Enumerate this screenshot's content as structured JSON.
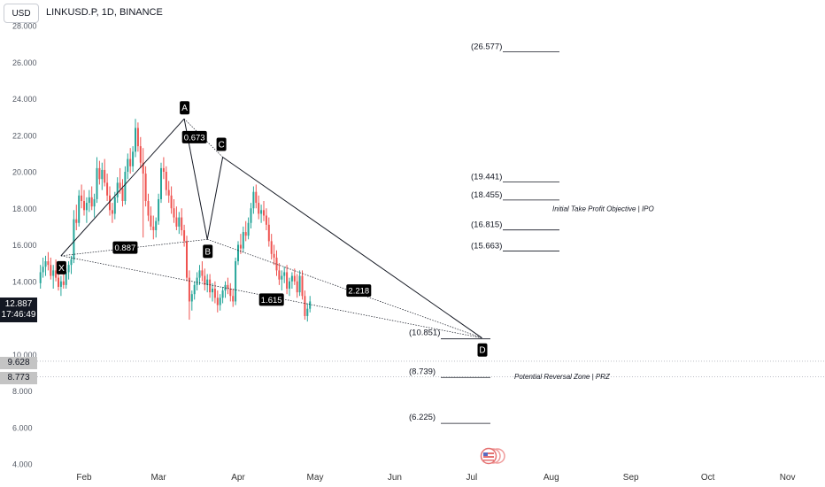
{
  "header": {
    "currency": "USD",
    "symbol": "LINKUSD.P, 1D, BINANCE"
  },
  "price_tags": {
    "current_price": "12.887",
    "countdown": "17:46:49",
    "level_1": "9.628",
    "level_2": "8.773"
  },
  "colors": {
    "up": "#26a69a",
    "down": "#ef5350",
    "pattern": "#131722",
    "label_bg": "#000000"
  },
  "chart_data": {
    "type": "candlestick",
    "symbol": "LINKUSD.P",
    "interval": "1D",
    "exchange": "BINANCE",
    "ylim": [
      4,
      28
    ],
    "y_ticks": [
      "28.000",
      "26.000",
      "24.000",
      "22.000",
      "20.000",
      "18.000",
      "16.000",
      "14.000",
      "12.000",
      "10.000",
      "8.000",
      "6.000",
      "4.000"
    ],
    "x_ticks": [
      "Feb",
      "Mar",
      "Apr",
      "May",
      "Jun",
      "Jul",
      "Aug",
      "Sep",
      "Oct",
      "Nov"
    ],
    "harmonic_points": [
      {
        "name": "X",
        "date": "2024-01-23",
        "price": 15.4
      },
      {
        "name": "A",
        "date": "2024-03-11",
        "price": 22.9
      },
      {
        "name": "B",
        "date": "2024-03-20",
        "price": 16.3
      },
      {
        "name": "C",
        "date": "2024-03-26",
        "price": 20.8
      },
      {
        "name": "D",
        "date": "2024-07-05",
        "price": 10.9
      }
    ],
    "ratios": [
      {
        "text": "0.887",
        "date": "2024-02-17",
        "price": 15.85
      },
      {
        "text": "0.673",
        "date": "2024-03-15",
        "price": 21.9
      },
      {
        "text": "1.615",
        "date": "2024-04-14",
        "price": 13.0
      },
      {
        "text": "2.218",
        "date": "2024-05-18",
        "price": 13.5
      }
    ],
    "levels": [
      {
        "label": "(26.577)",
        "price": 26.577
      },
      {
        "label": "(19.441)",
        "price": 19.441
      },
      {
        "label": "(18.455)",
        "price": 18.455
      },
      {
        "label": "(16.815)",
        "price": 16.815
      },
      {
        "label": "(15.663)",
        "price": 15.663
      },
      {
        "label": "(10.851)",
        "price": 10.851
      },
      {
        "label": "(8.739)",
        "price": 8.739
      },
      {
        "label": "(6.225)",
        "price": 6.225
      }
    ],
    "annotations": [
      {
        "text": "Initial Take Profit Objective | IPO",
        "price": 18.0
      },
      {
        "text": "Potential Reversal Zone | PRZ",
        "price": 8.8
      }
    ],
    "hlines": [
      9.628,
      8.773
    ],
    "candles": [
      [
        13.9,
        14.9,
        13.6,
        14.5
      ],
      [
        14.5,
        15.3,
        14.2,
        14.8
      ],
      [
        14.8,
        15.4,
        14.3,
        15.1
      ],
      [
        15.1,
        15.6,
        14.6,
        14.9
      ],
      [
        14.9,
        15.3,
        14.1,
        14.3
      ],
      [
        14.3,
        14.9,
        13.6,
        14.6
      ],
      [
        14.6,
        15.2,
        14.0,
        14.2
      ],
      [
        14.2,
        14.6,
        13.5,
        13.7
      ],
      [
        13.7,
        14.3,
        13.2,
        14.0
      ],
      [
        14.0,
        14.5,
        13.6,
        13.8
      ],
      [
        13.8,
        14.7,
        13.6,
        14.5
      ],
      [
        14.5,
        15.1,
        14.1,
        14.9
      ],
      [
        14.9,
        15.4,
        14.4,
        15.2
      ],
      [
        15.2,
        17.9,
        15.0,
        17.4
      ],
      [
        17.4,
        18.2,
        16.8,
        17.2
      ],
      [
        17.2,
        19.0,
        17.0,
        18.7
      ],
      [
        18.7,
        19.3,
        18.0,
        18.4
      ],
      [
        18.4,
        19.0,
        17.6,
        17.9
      ],
      [
        17.9,
        18.6,
        17.2,
        18.3
      ],
      [
        18.3,
        19.0,
        17.8,
        18.6
      ],
      [
        18.6,
        19.2,
        17.9,
        18.1
      ],
      [
        18.1,
        18.8,
        17.5,
        18.5
      ],
      [
        18.5,
        20.8,
        18.3,
        20.2
      ],
      [
        20.2,
        20.6,
        19.3,
        19.6
      ],
      [
        19.6,
        20.5,
        19.0,
        20.1
      ],
      [
        20.1,
        20.7,
        19.2,
        19.4
      ],
      [
        19.4,
        19.9,
        18.4,
        18.7
      ],
      [
        18.7,
        19.2,
        17.6,
        17.9
      ],
      [
        17.9,
        18.3,
        17.2,
        17.7
      ],
      [
        17.7,
        18.9,
        17.4,
        18.6
      ],
      [
        18.6,
        19.7,
        18.3,
        19.4
      ],
      [
        19.4,
        20.2,
        18.8,
        19.1
      ],
      [
        19.1,
        19.6,
        18.1,
        18.4
      ],
      [
        18.4,
        20.3,
        18.2,
        20.0
      ],
      [
        20.0,
        21.0,
        19.6,
        20.7
      ],
      [
        20.7,
        21.3,
        19.9,
        20.3
      ],
      [
        20.3,
        21.4,
        20.0,
        21.1
      ],
      [
        21.1,
        22.9,
        20.8,
        22.4
      ],
      [
        22.4,
        22.7,
        21.1,
        21.4
      ],
      [
        21.4,
        21.9,
        20.2,
        20.5
      ],
      [
        20.5,
        21.3,
        16.4,
        19.9
      ],
      [
        19.9,
        20.3,
        18.1,
        18.4
      ],
      [
        18.4,
        18.8,
        17.3,
        17.6
      ],
      [
        17.6,
        18.1,
        16.8,
        17.0
      ],
      [
        17.0,
        17.6,
        16.3,
        16.8
      ],
      [
        16.8,
        17.5,
        16.4,
        17.3
      ],
      [
        17.3,
        18.8,
        17.1,
        18.5
      ],
      [
        18.5,
        20.5,
        18.3,
        20.2
      ],
      [
        20.2,
        20.8,
        19.6,
        20.0
      ],
      [
        20.0,
        20.3,
        18.7,
        19.0
      ],
      [
        19.0,
        19.5,
        18.3,
        18.7
      ],
      [
        18.7,
        19.2,
        17.7,
        18.0
      ],
      [
        18.0,
        18.5,
        17.2,
        17.5
      ],
      [
        17.5,
        18.1,
        16.8,
        17.0
      ],
      [
        17.0,
        17.8,
        16.6,
        17.5
      ],
      [
        17.5,
        18.0,
        16.5,
        16.8
      ],
      [
        16.8,
        17.1,
        15.9,
        16.2
      ],
      [
        16.2,
        16.5,
        14.0,
        14.2
      ],
      [
        14.2,
        14.6,
        11.9,
        12.9
      ],
      [
        12.9,
        13.5,
        12.4,
        13.3
      ],
      [
        13.3,
        14.0,
        13.0,
        13.8
      ],
      [
        13.8,
        14.5,
        13.5,
        14.2
      ],
      [
        14.2,
        14.9,
        13.8,
        14.6
      ],
      [
        14.6,
        15.1,
        14.0,
        14.3
      ],
      [
        14.3,
        14.7,
        13.5,
        13.8
      ],
      [
        13.8,
        14.4,
        13.4,
        14.1
      ],
      [
        14.1,
        14.4,
        13.1,
        13.4
      ],
      [
        13.4,
        13.9,
        12.9,
        13.6
      ],
      [
        13.6,
        14.0,
        12.8,
        13.1
      ],
      [
        13.1,
        13.5,
        12.3,
        12.7
      ],
      [
        12.7,
        13.3,
        12.4,
        13.1
      ],
      [
        13.1,
        13.7,
        12.8,
        13.5
      ],
      [
        13.5,
        14.0,
        13.1,
        13.8
      ],
      [
        13.8,
        14.2,
        13.3,
        13.6
      ],
      [
        13.6,
        13.9,
        12.9,
        13.2
      ],
      [
        13.2,
        13.6,
        12.6,
        12.9
      ],
      [
        12.9,
        15.3,
        12.7,
        15.1
      ],
      [
        15.1,
        16.2,
        14.9,
        16.0
      ],
      [
        16.0,
        16.6,
        15.5,
        15.8
      ],
      [
        15.8,
        17.0,
        15.6,
        16.7
      ],
      [
        16.7,
        17.3,
        16.2,
        16.5
      ],
      [
        16.5,
        17.5,
        16.3,
        17.2
      ],
      [
        17.2,
        18.3,
        16.9,
        18.0
      ],
      [
        18.0,
        19.2,
        17.7,
        18.9
      ],
      [
        18.9,
        19.3,
        18.0,
        18.3
      ],
      [
        18.3,
        18.7,
        17.4,
        17.7
      ],
      [
        17.7,
        18.2,
        17.2,
        17.9
      ],
      [
        17.9,
        18.4,
        17.3,
        17.6
      ],
      [
        17.6,
        18.0,
        16.8,
        17.1
      ],
      [
        17.1,
        17.5,
        15.9,
        16.2
      ],
      [
        16.2,
        16.6,
        15.2,
        15.5
      ],
      [
        15.5,
        16.0,
        14.9,
        15.3
      ],
      [
        15.3,
        15.7,
        14.3,
        14.6
      ],
      [
        14.6,
        15.0,
        13.8,
        14.1
      ],
      [
        14.1,
        14.6,
        13.5,
        14.3
      ],
      [
        14.3,
        14.8,
        13.9,
        14.5
      ],
      [
        14.5,
        14.9,
        13.3,
        13.6
      ],
      [
        13.6,
        14.2,
        13.2,
        14.0
      ],
      [
        14.0,
        14.5,
        13.6,
        14.3
      ],
      [
        14.3,
        14.7,
        13.8,
        14.0
      ],
      [
        14.0,
        14.4,
        13.1,
        13.4
      ],
      [
        13.4,
        14.6,
        13.2,
        14.3
      ],
      [
        14.3,
        14.6,
        13.0,
        13.2
      ],
      [
        13.2,
        13.5,
        11.9,
        12.1
      ],
      [
        12.1,
        12.8,
        11.8,
        12.5
      ],
      [
        12.5,
        13.2,
        12.3,
        12.9
      ]
    ]
  }
}
